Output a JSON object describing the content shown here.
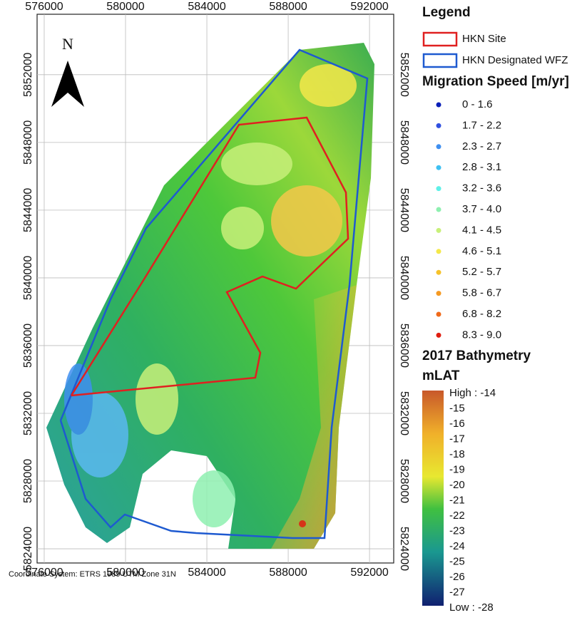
{
  "map": {
    "xticks": [
      576000,
      580000,
      584000,
      588000,
      592000
    ],
    "yticks": [
      5824000,
      5828000,
      5832000,
      5836000,
      5840000,
      5844000,
      5848000,
      5852000
    ],
    "xlim": [
      575650,
      593190
    ],
    "ylim": [
      5823160,
      5855570
    ],
    "north_label": "N",
    "coordinate_system": "Coordinate System: ETRS 1989 UTM Zone 31N"
  },
  "legend": {
    "title": "Legend",
    "site": "HKN Site",
    "wfz": "HKN Designated WFZ",
    "migration_title": "Migration Speed [m/yr]",
    "classes": [
      {
        "label": "0 - 1.6",
        "color": "#0a1fb8"
      },
      {
        "label": "1.7 - 2.2",
        "color": "#3050e0"
      },
      {
        "label": "2.3 - 2.7",
        "color": "#3f8ff0"
      },
      {
        "label": "2.8 - 3.1",
        "color": "#3ec0f2"
      },
      {
        "label": "3.2 - 3.6",
        "color": "#5ef0e8"
      },
      {
        "label": "3.7 - 4.0",
        "color": "#8ef0b0"
      },
      {
        "label": "4.1 - 4.5",
        "color": "#c8f07a"
      },
      {
        "label": "4.6 - 5.1",
        "color": "#f4e84a"
      },
      {
        "label": "5.2 - 5.7",
        "color": "#f6c22a"
      },
      {
        "label": "5.8 - 6.7",
        "color": "#f59a22"
      },
      {
        "label": "6.8 - 8.2",
        "color": "#f06a1a"
      },
      {
        "label": "8.3 - 9.0",
        "color": "#e01e10"
      }
    ],
    "bathymetry_title": "2017 Bathymetry",
    "unit": "mLAT",
    "high": "High : -14",
    "low": "Low : -28",
    "scale_labels": [
      "-15",
      "-16",
      "-17",
      "-18",
      "-19",
      "-20",
      "-21",
      "-22",
      "-23",
      "-24",
      "-25",
      "-26",
      "-27"
    ]
  }
}
